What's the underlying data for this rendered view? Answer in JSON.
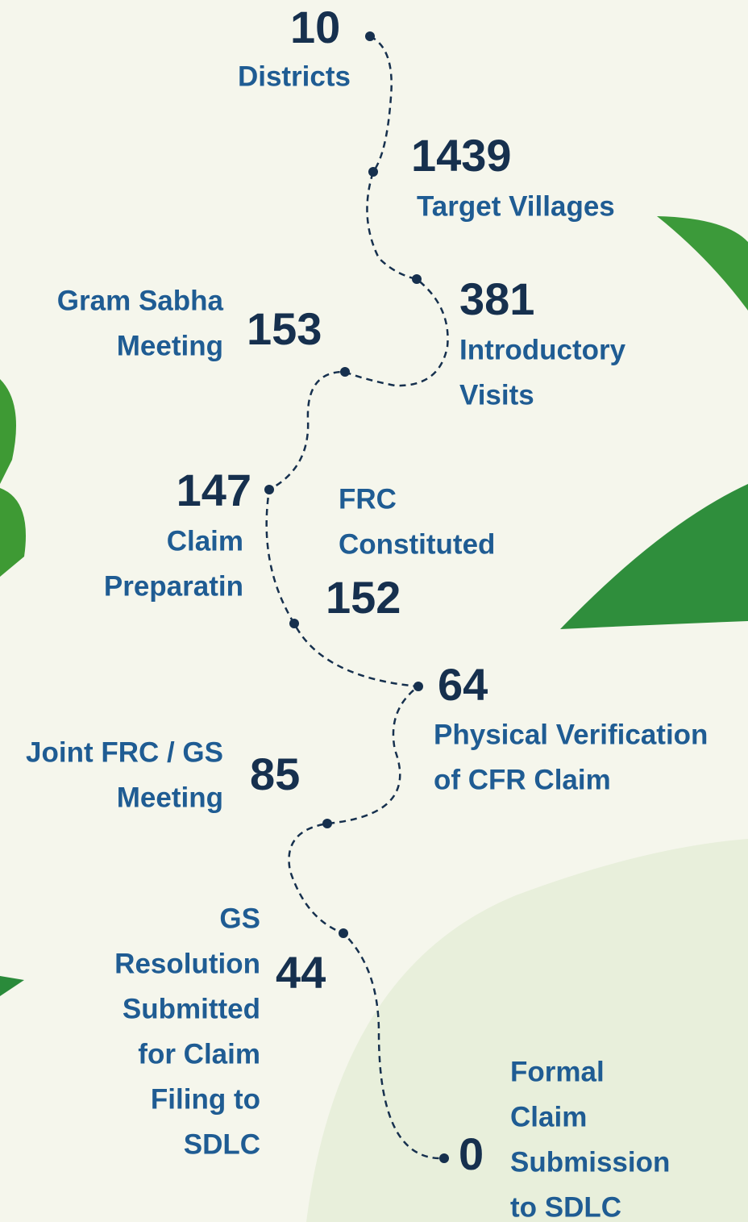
{
  "steps": [
    {
      "value": 10,
      "label": [
        "Districts"
      ]
    },
    {
      "value": 1439,
      "label": [
        "Target Villages"
      ]
    },
    {
      "value": 381,
      "label": [
        "Introductory",
        "Visits"
      ]
    },
    {
      "value": 153,
      "label": [
        "Gram Sabha",
        "Meeting"
      ]
    },
    {
      "value": 147,
      "label": [
        "Claim",
        "Preparatin"
      ]
    },
    {
      "value": 152,
      "label": [
        "FRC",
        "Constituted"
      ]
    },
    {
      "value": 64,
      "label": [
        "Physical Verification",
        "of CFR Claim"
      ]
    },
    {
      "value": 85,
      "label": [
        "Joint FRC / GS",
        "Meeting"
      ]
    },
    {
      "value": 44,
      "label": [
        "GS",
        "Resolution",
        "Submitted",
        "for Claim",
        "Filing to",
        "SDLC"
      ]
    },
    {
      "value": 0,
      "label": [
        "Formal",
        "Claim",
        "Submission",
        "to SDLC"
      ]
    }
  ]
}
